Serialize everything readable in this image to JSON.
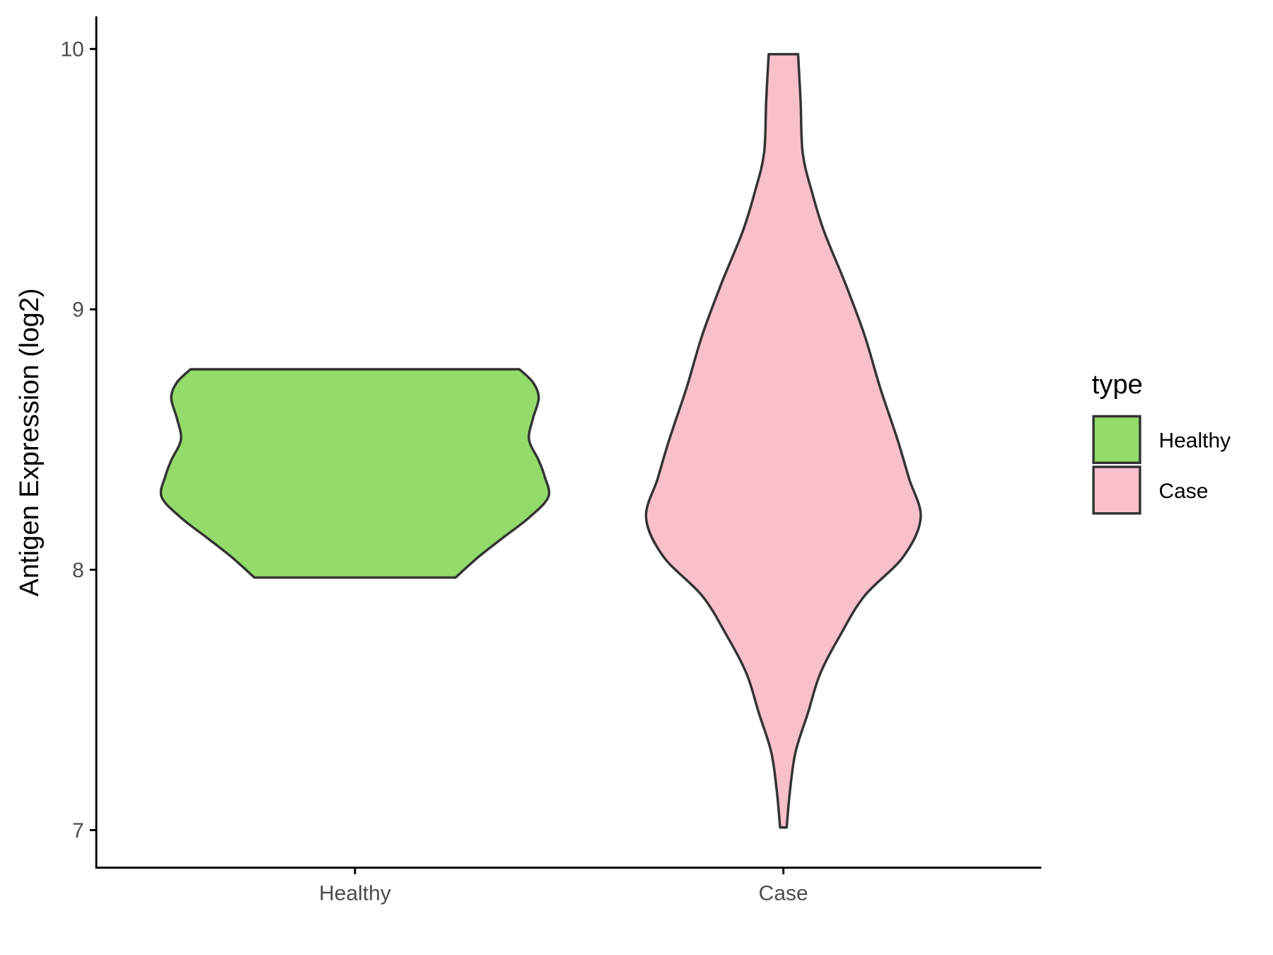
{
  "chart_data": {
    "type": "violin",
    "title": "",
    "xlabel": "",
    "ylabel": "Antigen Expression (log2)",
    "ylim": [
      6.87,
      10.13
    ],
    "yticks": [
      7,
      8,
      9,
      10
    ],
    "ytick_labels": [
      "7",
      "8",
      "9",
      "10"
    ],
    "categories": [
      "Healthy",
      "Case"
    ],
    "grid": false,
    "legend": {
      "title": "type",
      "position": "right",
      "entries": [
        "Healthy",
        "Case"
      ]
    },
    "outline_color": "#333333",
    "series": [
      {
        "name": "Healthy",
        "color": "#93DB6A",
        "profile": [
          {
            "y": 7.97,
            "width": 0.52
          },
          {
            "y": 8.05,
            "width": 0.64
          },
          {
            "y": 8.12,
            "width": 0.76
          },
          {
            "y": 8.2,
            "width": 0.9
          },
          {
            "y": 8.28,
            "width": 1.0
          },
          {
            "y": 8.36,
            "width": 0.98
          },
          {
            "y": 8.42,
            "width": 0.95
          },
          {
            "y": 8.5,
            "width": 0.9
          },
          {
            "y": 8.58,
            "width": 0.92
          },
          {
            "y": 8.66,
            "width": 0.95
          },
          {
            "y": 8.72,
            "width": 0.92
          },
          {
            "y": 8.77,
            "width": 0.85
          }
        ]
      },
      {
        "name": "Case",
        "color": "#F8C0CB",
        "profile": [
          {
            "y": 7.01,
            "width": 0.017
          },
          {
            "y": 7.15,
            "width": 0.034
          },
          {
            "y": 7.3,
            "width": 0.063
          },
          {
            "y": 7.45,
            "width": 0.127
          },
          {
            "y": 7.6,
            "width": 0.19
          },
          {
            "y": 7.75,
            "width": 0.295
          },
          {
            "y": 7.9,
            "width": 0.42
          },
          {
            "y": 8.05,
            "width": 0.62
          },
          {
            "y": 8.2,
            "width": 0.71
          },
          {
            "y": 8.35,
            "width": 0.65
          },
          {
            "y": 8.5,
            "width": 0.59
          },
          {
            "y": 8.7,
            "width": 0.5
          },
          {
            "y": 8.9,
            "width": 0.42
          },
          {
            "y": 9.1,
            "width": 0.32
          },
          {
            "y": 9.3,
            "width": 0.21
          },
          {
            "y": 9.45,
            "width": 0.148
          },
          {
            "y": 9.6,
            "width": 0.1
          },
          {
            "y": 9.8,
            "width": 0.089
          },
          {
            "y": 9.98,
            "width": 0.076
          }
        ]
      }
    ]
  }
}
